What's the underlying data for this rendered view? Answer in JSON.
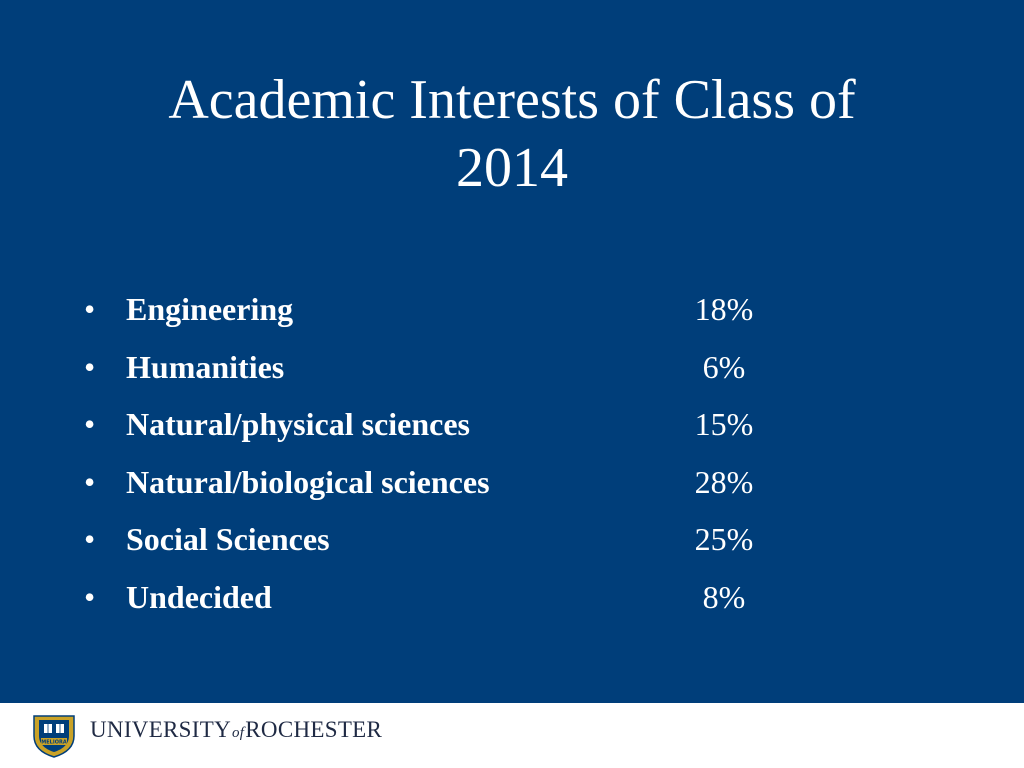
{
  "slide": {
    "title_line1": "Academic Interests of Class of",
    "title_line2": "2014"
  },
  "items": [
    {
      "label": "Engineering",
      "value": "18%"
    },
    {
      "label": "Humanities",
      "value": "6%"
    },
    {
      "label": "Natural/physical sciences",
      "value": "15%"
    },
    {
      "label": "Natural/biological sciences",
      "value": "28%"
    },
    {
      "label": "Social Sciences",
      "value": "25%"
    },
    {
      "label": "Undecided",
      "value": "8%"
    }
  ],
  "bullet_glyph": "•",
  "footer": {
    "logo_part1": "UNIVERSITY",
    "logo_of": "of",
    "logo_part2": "ROCHESTER",
    "shield_text": "MELIORA"
  },
  "colors": {
    "background": "#003E7A",
    "text": "#FFFFFF",
    "footer_bg": "#FFFFFF",
    "wordmark": "#1F2A44",
    "shield_gold": "#C9A227",
    "shield_navy": "#003E7A"
  }
}
